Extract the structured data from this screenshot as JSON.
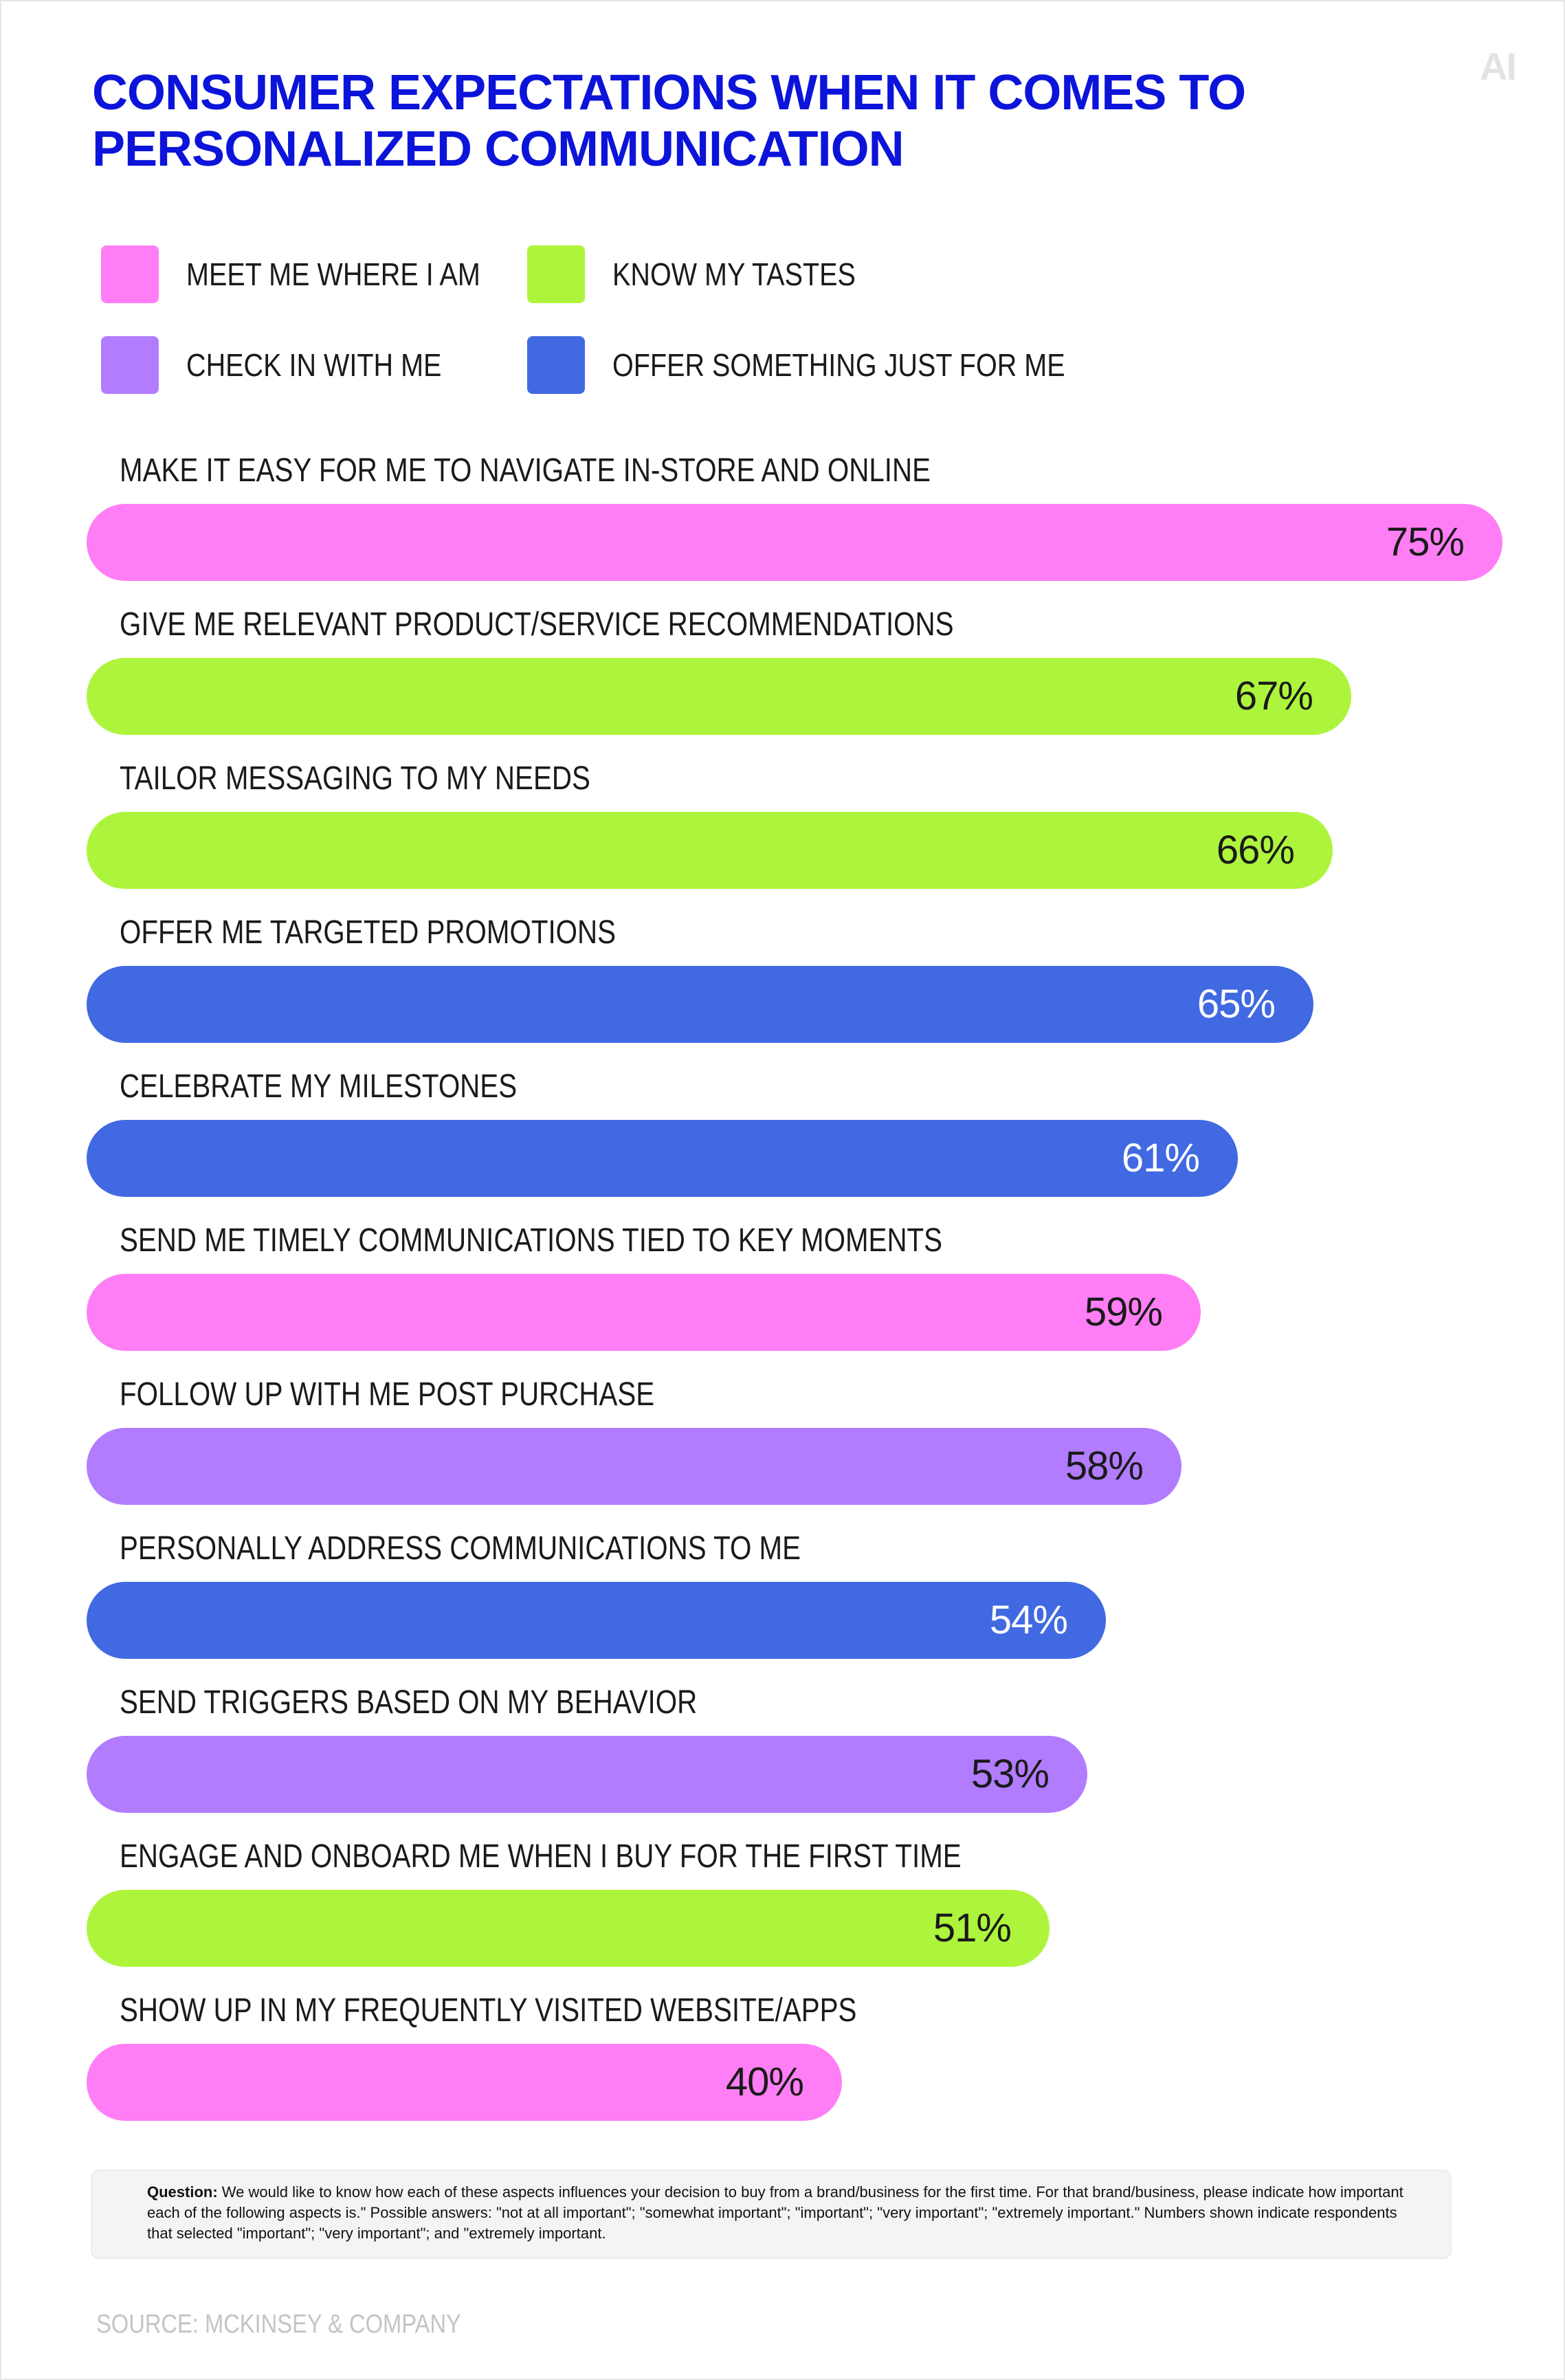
{
  "logo": {
    "text": "AI"
  },
  "title": "CONSUMER EXPECTATIONS WHEN IT COMES TO PERSONALIZED COMMUNICATION",
  "colors": {
    "meet": "#ff7ef5",
    "tastes": "#adf53c",
    "check": "#b27cff",
    "offer": "#4169e1",
    "title": "#0c14d9"
  },
  "legend": [
    {
      "key": "meet",
      "label": "MEET ME WHERE I AM",
      "color": "#ff7ef5"
    },
    {
      "key": "tastes",
      "label": "KNOW MY TASTES",
      "color": "#adf53c"
    },
    {
      "key": "check",
      "label": "CHECK IN WITH ME",
      "color": "#b27cff"
    },
    {
      "key": "offer",
      "label": "OFFER SOMETHING JUST FOR ME",
      "color": "#4169e1"
    }
  ],
  "chart_data": {
    "type": "bar",
    "orientation": "horizontal",
    "unit": "%",
    "xlim": [
      0,
      75
    ],
    "grid": false,
    "legend_position": "top",
    "categories": [
      "MAKE IT EASY FOR ME TO NAVIGATE IN-STORE AND ONLINE",
      "GIVE ME RELEVANT PRODUCT/SERVICE RECOMMENDATIONS",
      "TAILOR MESSAGING TO MY NEEDS",
      "OFFER ME TARGETED PROMOTIONS",
      "CELEBRATE MY MILESTONES",
      "SEND ME TIMELY COMMUNICATIONS TIED TO KEY MOMENTS",
      "FOLLOW UP WITH ME POST PURCHASE",
      "PERSONALLY ADDRESS COMMUNICATIONS TO ME",
      "SEND TRIGGERS BASED ON MY BEHAVIOR",
      "ENGAGE AND ONBOARD ME WHEN I BUY FOR THE FIRST TIME",
      "SHOW UP IN MY FREQUENTLY VISITED WEBSITE/APPS"
    ],
    "values": [
      75,
      67,
      66,
      65,
      61,
      59,
      58,
      54,
      53,
      51,
      40
    ],
    "value_labels": [
      "75%",
      "67%",
      "66%",
      "65%",
      "61%",
      "59%",
      "58%",
      "54%",
      "53%",
      "51%",
      "40%"
    ],
    "groups": [
      "meet",
      "tastes",
      "tastes",
      "offer",
      "offer",
      "meet",
      "check",
      "offer",
      "check",
      "tastes",
      "meet"
    ]
  },
  "note": {
    "lead": "Question:",
    "text": " We would like to know how each of these aspects influences your decision to buy from a brand/business for the first time. For that brand/business, please indicate how important each of the following aspects is.\" Possible answers: \"not at all important\"; \"somewhat important\"; \"important\"; \"very important\"; \"extremely important.\" Numbers shown indicate respondents that selected \"important\"; \"very important\"; and \"extremely important."
  },
  "source": "SOURCE: MCKINSEY & COMPANY"
}
